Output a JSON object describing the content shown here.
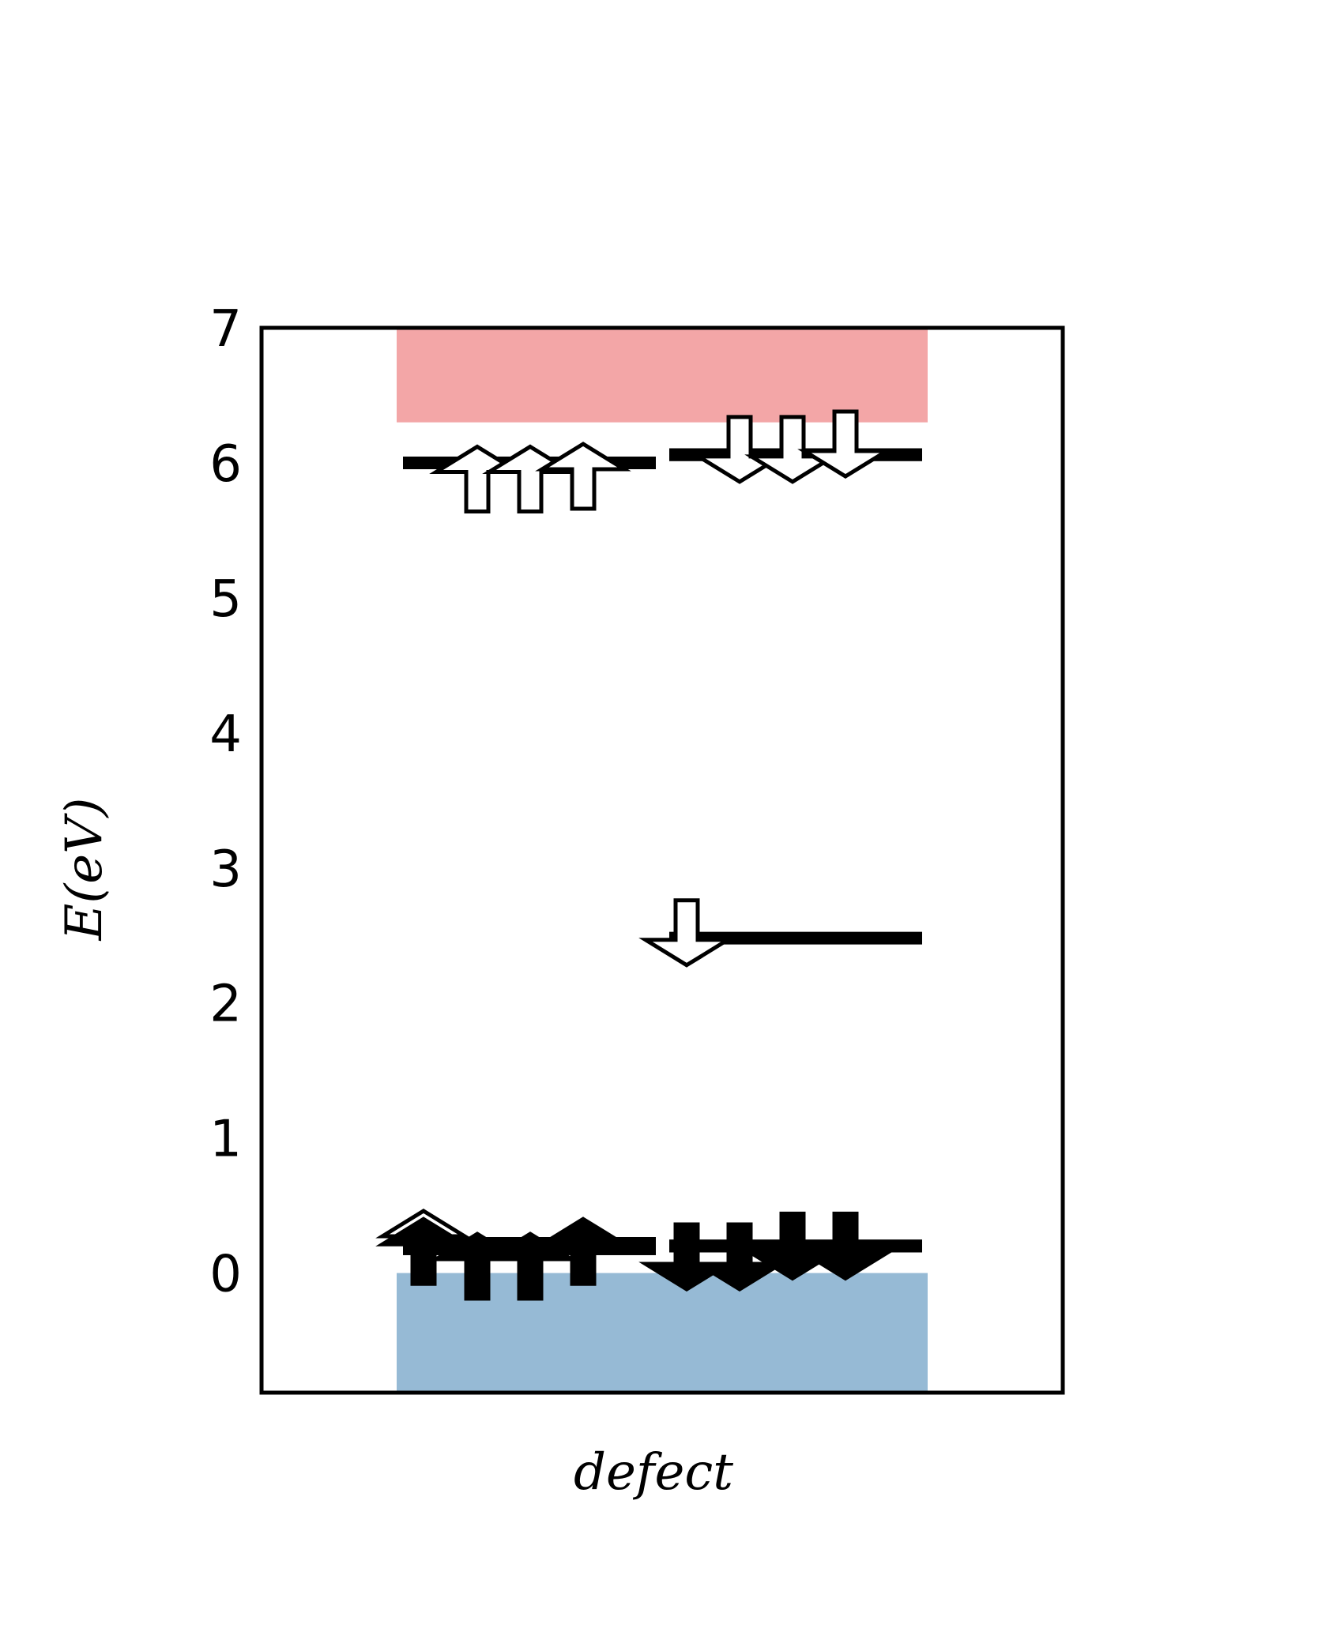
{
  "chart_data": {
    "type": "energy-level-diagram",
    "title": "",
    "xlabel": "defect",
    "ylabel": "E(eV)",
    "ylim": [
      -0.88,
      7.0
    ],
    "yticks": [
      0,
      1,
      2,
      3,
      4,
      5,
      6,
      7
    ],
    "grid": false,
    "bands": [
      {
        "name": "valence band",
        "from": -0.88,
        "to": 0.0,
        "color": "#96bad5"
      },
      {
        "name": "conduction band",
        "from": 6.3,
        "to": 7.0,
        "color": "#f3a6a7"
      }
    ],
    "spin_up": {
      "levels": [
        {
          "energy": 0.22,
          "occupied": false
        },
        {
          "energy": 0.18,
          "occupied": true
        },
        {
          "energy": 0.18,
          "occupied": true
        },
        {
          "energy": 0.18,
          "occupied": true
        },
        {
          "energy": 0.18,
          "occupied": true
        },
        {
          "energy": 6.0,
          "occupied": false
        },
        {
          "energy": 6.0,
          "occupied": false
        },
        {
          "energy": 6.0,
          "occupied": false
        }
      ],
      "arrows": [
        {
          "energy": 0.22,
          "filled": false
        },
        {
          "energy": 0.05,
          "filled": true
        },
        {
          "energy": 0.05,
          "filled": true
        },
        {
          "energy": 0.16,
          "filled": true
        },
        {
          "energy": 0.16,
          "filled": true
        },
        {
          "energy": 5.88,
          "filled": false
        },
        {
          "energy": 5.88,
          "filled": false
        },
        {
          "energy": 5.9,
          "filled": false
        }
      ]
    },
    "spin_down": {
      "levels": [
        {
          "energy": 0.2,
          "occupied": true
        },
        {
          "energy": 0.2,
          "occupied": true
        },
        {
          "energy": 0.2,
          "occupied": true
        },
        {
          "energy": 0.2,
          "occupied": true
        },
        {
          "energy": 2.48,
          "occupied": false
        },
        {
          "energy": 6.06,
          "occupied": false
        },
        {
          "energy": 6.06,
          "occupied": false
        },
        {
          "energy": 6.06,
          "occupied": false
        }
      ],
      "arrows": [
        {
          "energy": 0.12,
          "filled": true
        },
        {
          "energy": 0.12,
          "filled": true
        },
        {
          "energy": 0.2,
          "filled": true
        },
        {
          "energy": 0.2,
          "filled": true
        },
        {
          "energy": 2.52,
          "filled": false
        },
        {
          "energy": 6.1,
          "filled": false
        },
        {
          "energy": 6.1,
          "filled": false
        },
        {
          "energy": 6.14,
          "filled": false
        }
      ]
    }
  }
}
